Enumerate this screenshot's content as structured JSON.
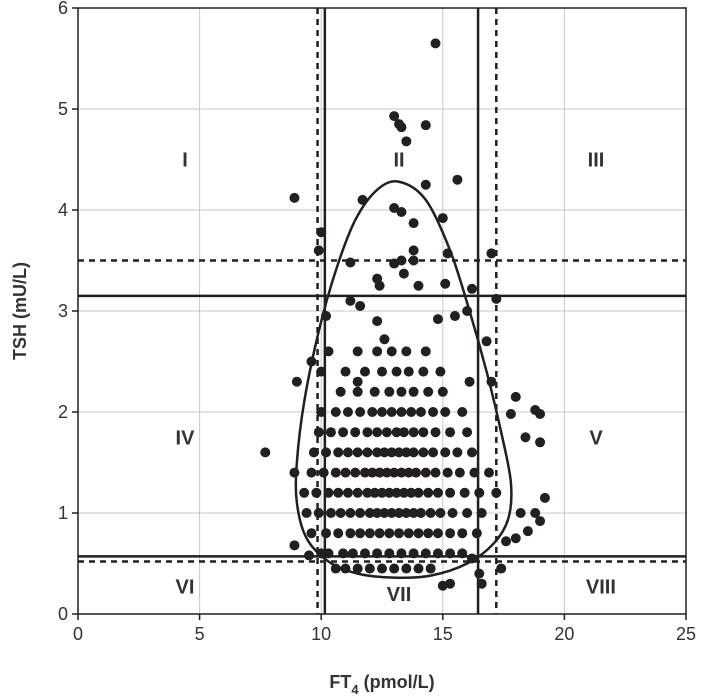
{
  "chart_data": {
    "type": "scatter",
    "xlabel_main": "FT",
    "xlabel_sub": "4",
    "xlabel_unit": " (pmol/L)",
    "ylabel": "TSH (mU/L)",
    "xlim": [
      0,
      25
    ],
    "ylim": [
      0,
      6
    ],
    "x_ticks": [
      "0",
      "5",
      "10",
      "15",
      "20",
      "25"
    ],
    "y_ticks": [
      "0",
      "1",
      "2",
      "3",
      "4",
      "5",
      "6"
    ],
    "grid": true,
    "colors": {
      "points": "#231f20",
      "lines": "#231f20",
      "grid": "#c8c8c8"
    },
    "reference_lines": {
      "solid_vertical_ft4": [
        10.15,
        16.45
      ],
      "dashed_vertical_ft4": [
        9.85,
        17.2
      ],
      "solid_horizontal_tsh": [
        3.15,
        0.57
      ],
      "dashed_horizontal_tsh": [
        3.5,
        0.52
      ]
    },
    "regions": [
      {
        "label": "I",
        "ft4": 4.4,
        "tsh": 4.5
      },
      {
        "label": "II",
        "ft4": 13.2,
        "tsh": 4.5
      },
      {
        "label": "III",
        "ft4": 21.3,
        "tsh": 4.5
      },
      {
        "label": "IV",
        "ft4": 4.4,
        "tsh": 1.75
      },
      {
        "label": "V",
        "ft4": 21.3,
        "tsh": 1.75
      },
      {
        "label": "VI",
        "ft4": 4.4,
        "tsh": 0.27
      },
      {
        "label": "VII",
        "ft4": 13.2,
        "tsh": 0.2
      },
      {
        "label": "VIII",
        "ft4": 21.5,
        "tsh": 0.27
      }
    ],
    "contour": [
      [
        13.2,
        4.28
      ],
      [
        14.3,
        4.1
      ],
      [
        15.3,
        3.6
      ],
      [
        16.1,
        3.0
      ],
      [
        16.8,
        2.4
      ],
      [
        17.4,
        1.8
      ],
      [
        17.8,
        1.3
      ],
      [
        17.7,
        0.95
      ],
      [
        17.1,
        0.7
      ],
      [
        16.0,
        0.5
      ],
      [
        14.5,
        0.38
      ],
      [
        13.0,
        0.36
      ],
      [
        11.5,
        0.4
      ],
      [
        10.3,
        0.52
      ],
      [
        9.4,
        0.75
      ],
      [
        9.0,
        1.1
      ],
      [
        9.0,
        1.5
      ],
      [
        9.3,
        2.1
      ],
      [
        9.9,
        2.8
      ],
      [
        10.6,
        3.4
      ],
      [
        11.4,
        3.9
      ],
      [
        12.3,
        4.2
      ]
    ],
    "points": [
      [
        14.7,
        5.65
      ],
      [
        13.0,
        4.93
      ],
      [
        13.2,
        4.85
      ],
      [
        13.3,
        4.82
      ],
      [
        14.3,
        4.84
      ],
      [
        13.5,
        4.68
      ],
      [
        15.6,
        4.3
      ],
      [
        14.3,
        4.25
      ],
      [
        8.9,
        4.12
      ],
      [
        11.7,
        4.1
      ],
      [
        13.0,
        4.02
      ],
      [
        13.3,
        3.98
      ],
      [
        13.8,
        3.87
      ],
      [
        15.0,
        3.92
      ],
      [
        10.0,
        3.78
      ],
      [
        9.9,
        3.6
      ],
      [
        13.8,
        3.6
      ],
      [
        15.2,
        3.57
      ],
      [
        17.0,
        3.57
      ],
      [
        11.2,
        3.48
      ],
      [
        13.0,
        3.47
      ],
      [
        13.3,
        3.5
      ],
      [
        13.8,
        3.5
      ],
      [
        12.3,
        3.32
      ],
      [
        12.4,
        3.25
      ],
      [
        13.4,
        3.37
      ],
      [
        14.0,
        3.25
      ],
      [
        15.1,
        3.27
      ],
      [
        16.2,
        3.22
      ],
      [
        17.2,
        3.12
      ],
      [
        10.2,
        2.95
      ],
      [
        10.3,
        2.6
      ],
      [
        11.2,
        3.1
      ],
      [
        11.6,
        3.05
      ],
      [
        12.3,
        2.9
      ],
      [
        12.6,
        2.72
      ],
      [
        14.8,
        2.92
      ],
      [
        15.5,
        2.95
      ],
      [
        16.0,
        3.0
      ],
      [
        16.8,
        2.7
      ],
      [
        9.0,
        2.3
      ],
      [
        9.6,
        2.5
      ],
      [
        10.0,
        2.4
      ],
      [
        11.5,
        2.3
      ],
      [
        16.1,
        2.3
      ],
      [
        17.0,
        2.3
      ],
      [
        17.8,
        1.98
      ],
      [
        18.0,
        2.15
      ],
      [
        18.8,
        2.02
      ],
      [
        19.0,
        1.98
      ],
      [
        18.4,
        1.75
      ],
      [
        19.0,
        1.7
      ],
      [
        7.7,
        1.6
      ],
      [
        8.9,
        1.4
      ],
      [
        19.2,
        1.15
      ],
      [
        18.2,
        1.0
      ],
      [
        18.8,
        1.0
      ],
      [
        19.0,
        0.92
      ],
      [
        18.5,
        0.82
      ],
      [
        18.0,
        0.75
      ],
      [
        17.6,
        0.72
      ],
      [
        8.9,
        0.68
      ],
      [
        9.5,
        0.58
      ],
      [
        10.0,
        0.6
      ],
      [
        16.2,
        0.55
      ],
      [
        16.5,
        0.4
      ],
      [
        16.6,
        0.3
      ],
      [
        15.3,
        0.3
      ],
      [
        15.0,
        0.28
      ],
      [
        17.4,
        0.45
      ]
    ],
    "point_rows": [
      {
        "tsh": 0.45,
        "ft4": [
          10.6,
          11.0,
          11.5,
          12.0,
          12.5,
          13.0,
          13.5,
          14.0,
          14.5
        ]
      },
      {
        "tsh": 0.6,
        "ft4": [
          10.3,
          10.9,
          11.3,
          11.8,
          12.3,
          12.8,
          13.3,
          13.8,
          14.3,
          14.8,
          15.3,
          15.8
        ]
      },
      {
        "tsh": 0.8,
        "ft4": [
          9.6,
          10.2,
          10.7,
          11.2,
          11.6,
          12.0,
          12.4,
          12.8,
          13.2,
          13.6,
          14.0,
          14.4,
          14.8,
          15.3,
          15.8,
          16.4
        ]
      },
      {
        "tsh": 1.0,
        "ft4": [
          9.4,
          9.9,
          10.4,
          10.8,
          11.2,
          11.6,
          12.0,
          12.3,
          12.6,
          12.9,
          13.2,
          13.5,
          13.8,
          14.1,
          14.5,
          14.9,
          15.4,
          16.0,
          16.6
        ]
      },
      {
        "tsh": 1.2,
        "ft4": [
          9.3,
          9.8,
          10.3,
          10.7,
          11.1,
          11.5,
          11.9,
          12.2,
          12.5,
          12.8,
          13.1,
          13.4,
          13.7,
          14.0,
          14.4,
          14.8,
          15.3,
          15.9,
          16.5,
          17.2
        ]
      },
      {
        "tsh": 1.4,
        "ft4": [
          9.6,
          10.1,
          10.6,
          11.0,
          11.4,
          11.8,
          12.1,
          12.4,
          12.7,
          13.0,
          13.3,
          13.6,
          13.9,
          14.3,
          14.7,
          15.2,
          15.7,
          16.3,
          16.9
        ]
      },
      {
        "tsh": 1.6,
        "ft4": [
          9.7,
          10.2,
          10.7,
          11.1,
          11.5,
          11.9,
          12.3,
          12.6,
          12.9,
          13.2,
          13.5,
          13.8,
          14.2,
          14.6,
          15.1,
          15.6,
          16.2
        ]
      },
      {
        "tsh": 1.8,
        "ft4": [
          9.9,
          10.4,
          10.9,
          11.4,
          11.9,
          12.3,
          12.7,
          13.1,
          13.4,
          13.8,
          14.2,
          14.7,
          15.3,
          16.0
        ]
      },
      {
        "tsh": 2.0,
        "ft4": [
          10.0,
          10.6,
          11.1,
          11.6,
          12.1,
          12.5,
          12.9,
          13.3,
          13.7,
          14.1,
          14.6,
          15.1,
          15.8
        ]
      },
      {
        "tsh": 2.2,
        "ft4": [
          10.8,
          11.5,
          12.2,
          12.8,
          13.3,
          13.8,
          14.4,
          15.0
        ]
      },
      {
        "tsh": 2.4,
        "ft4": [
          11.0,
          11.8,
          12.5,
          13.1,
          13.6,
          14.2,
          14.9
        ]
      },
      {
        "tsh": 2.6,
        "ft4": [
          11.5,
          12.3,
          12.9,
          13.5,
          14.3
        ]
      }
    ]
  }
}
